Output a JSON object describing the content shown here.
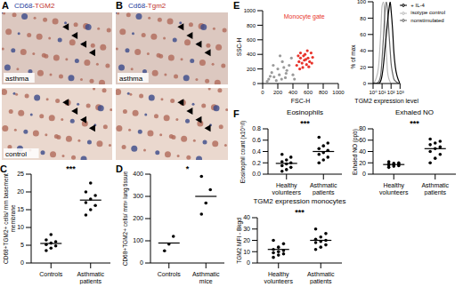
{
  "images": [
    {
      "label": "A",
      "title": "CD68-TGM2",
      "captions": [
        "asthma",
        "control"
      ]
    },
    {
      "label": "B",
      "title": "Cd68-Tgm2",
      "captions": [
        "asthma"
      ]
    }
  ],
  "chart_data": [
    {
      "label": "C",
      "type": "scatter",
      "categories": [
        "Controls",
        "Asthmatic patients"
      ],
      "values": [
        [
          3.5,
          4.2,
          4.8,
          5.2,
          5.6,
          6.0,
          6.5,
          8.0
        ],
        [
          13.5,
          15.0,
          16.2,
          17.0,
          18.0,
          19.0,
          20.0,
          22.5
        ]
      ],
      "means": [
        5.5,
        17.7
      ],
      "color": "#000000",
      "ylabel": "CD68+TGM2+ cells/ mm basement membrane",
      "ylim": [
        0,
        25
      ],
      "yticks": [
        0,
        5,
        10,
        15,
        20,
        25
      ],
      "annotations": [
        "***"
      ]
    },
    {
      "label": "D",
      "type": "scatter",
      "categories": [
        "Controls",
        "Asthmatic mice"
      ],
      "values": [
        [
          55,
          85,
          120
        ],
        [
          220,
          270,
          330,
          390
        ]
      ],
      "means": [
        90,
        300
      ],
      "color": "#000000",
      "ylabel": "CD68+TGM2+ cells/ mm² lung tissue",
      "ylim": [
        0,
        400
      ],
      "yticks": [
        0,
        100,
        200,
        300,
        400
      ],
      "annotations": [
        "*"
      ]
    },
    {
      "label": "E",
      "type": "scatter",
      "xlabel": "FSC-H",
      "ylabel": "SSC-H",
      "xlim": [
        0,
        1000
      ],
      "ylim": [
        0,
        1000
      ],
      "xticks": [
        0,
        200,
        400,
        600,
        800,
        1000
      ],
      "yticks": [
        0,
        200,
        400,
        600,
        800,
        1000
      ],
      "series": [
        {
          "color": "#9a9a9a",
          "x": [
            80,
            120,
            150,
            200,
            220,
            260,
            300,
            320,
            350,
            180,
            100,
            250,
            400,
            280,
            140,
            60,
            380,
            420,
            230,
            310
          ],
          "y": [
            60,
            150,
            90,
            200,
            120,
            300,
            80,
            180,
            250,
            40,
            100,
            60,
            120,
            220,
            250,
            30,
            350,
            60,
            380,
            140
          ]
        },
        {
          "color": "#e8322a",
          "x": [
            450,
            480,
            500,
            520,
            550,
            560,
            580,
            600,
            620,
            640,
            500,
            530,
            470,
            660,
            590,
            540,
            610,
            570,
            490,
            650
          ],
          "y": [
            250,
            300,
            350,
            280,
            320,
            400,
            260,
            350,
            300,
            420,
            420,
            220,
            380,
            360,
            450,
            380,
            230,
            330,
            200,
            280
          ]
        }
      ],
      "annotations": [
        "Monocyte gate"
      ]
    },
    {
      "type": "line",
      "xlabel": "TGM2 expression level",
      "ylabel": "% of max",
      "log": "x",
      "xlim": [
        1,
        1000
      ],
      "xticks": [
        {
          "value": 1,
          "label": "10⁰"
        },
        {
          "value": 10,
          "label": "10¹"
        },
        {
          "value": 100,
          "label": "10²"
        },
        {
          "value": 1000,
          "label": "10³"
        }
      ],
      "ylim": [
        0,
        100
      ],
      "yticks": [
        0,
        20,
        40,
        60,
        80,
        100
      ],
      "x": [
        1,
        2,
        4,
        7,
        10,
        15,
        20,
        30,
        40,
        60,
        80,
        100,
        150,
        200,
        300,
        500,
        1000
      ],
      "series": [
        {
          "name": "isotype control",
          "color": "#bbbbbb",
          "values": [
            0,
            5,
            20,
            60,
            95,
            100,
            80,
            40,
            15,
            5,
            2,
            0,
            0,
            0,
            0,
            0,
            0
          ]
        },
        {
          "name": "nonstimulated",
          "color": "#666666",
          "values": [
            0,
            0,
            2,
            10,
            30,
            60,
            85,
            100,
            90,
            60,
            40,
            25,
            12,
            6,
            3,
            1,
            0
          ]
        },
        {
          "name": "+ IL-4",
          "color": "#000000",
          "values": [
            0,
            0,
            0,
            3,
            10,
            25,
            40,
            60,
            75,
            92,
            100,
            90,
            65,
            40,
            20,
            8,
            0
          ]
        }
      ],
      "legend": "top-right"
    },
    {
      "label": "F",
      "type": "scatter",
      "title": "Eosinophils",
      "categories": [
        "Healthy volunteers",
        "Asthmatic patients"
      ],
      "values": [
        [
          0.05,
          0.08,
          0.12,
          0.15,
          0.18,
          0.2,
          0.22,
          0.25,
          0.3,
          0.35
        ],
        [
          0.2,
          0.25,
          0.3,
          0.35,
          0.38,
          0.42,
          0.45,
          0.5,
          0.55,
          0.65
        ]
      ],
      "means": [
        0.19,
        0.4
      ],
      "color": "#000000",
      "ylabel": "Eosinophil count (x10⁹/l)",
      "ylim": [
        0,
        0.8
      ],
      "yticks": [
        {
          "value": 0,
          "label": "0.0"
        },
        0.2,
        0.4,
        0.6,
        0.8
      ],
      "annotations": [
        "***"
      ]
    },
    {
      "type": "scatter",
      "title": "Exhaled NO",
      "categories": [
        "Healthy volunteers",
        "Asthmatic patients"
      ],
      "values": [
        [
          12,
          14,
          15,
          16,
          17,
          17.5,
          18,
          19,
          20,
          22
        ],
        [
          20,
          28,
          35,
          40,
          45,
          48,
          52,
          55,
          58,
          62
        ]
      ],
      "means": [
        17,
        45
      ],
      "color": "#000000",
      "ylabel": "Exhaled NO (ppb)",
      "ylim": [
        0,
        80
      ],
      "yticks": [
        0,
        20,
        40,
        60,
        80
      ],
      "annotations": [
        "***"
      ]
    },
    {
      "type": "scatter",
      "title": "TGM2 expression monocytes",
      "categories": [
        "Healthy volunteers",
        "Asthmatic patients"
      ],
      "values": [
        [
          5,
          7,
          8,
          9,
          10,
          11,
          12,
          14,
          17,
          20
        ],
        [
          12,
          14,
          16,
          18,
          19,
          20,
          21,
          23,
          26,
          30
        ]
      ],
      "means": [
        12,
        20
      ],
      "color": "#000000",
      "ylabel": "TGM2 MFI - Bkgd",
      "ylim": [
        0,
        40
      ],
      "yticks": [
        0,
        10,
        20,
        30,
        40
      ],
      "annotations": [
        "***"
      ]
    }
  ]
}
